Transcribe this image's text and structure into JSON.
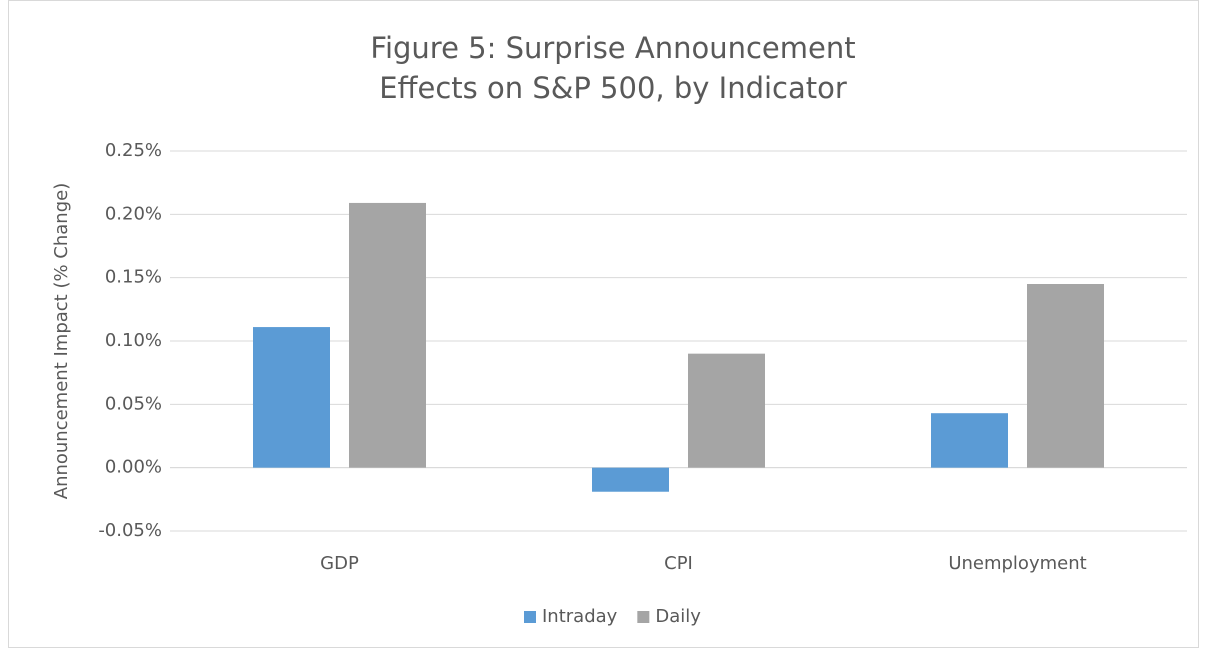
{
  "chart_data": {
    "type": "bar",
    "title": "Figure 5: Surprise Announcement Effects on S&P 500, by Indicator",
    "y_label": "Announcement Impact (% Change)",
    "categories": [
      "GDP",
      "CPI",
      "Unemployment"
    ],
    "series": [
      {
        "name": "Intraday",
        "color": "#5b9bd5",
        "values": [
          0.111,
          -0.019,
          0.043
        ]
      },
      {
        "name": "Daily",
        "color": "#a5a5a5",
        "values": [
          0.209,
          0.09,
          0.145
        ]
      }
    ],
    "ylim": [
      -0.05,
      0.25
    ],
    "yticks": [
      {
        "value": -0.05,
        "label": "-0.05%"
      },
      {
        "value": 0,
        "label": "0.00%"
      },
      {
        "value": 0.05,
        "label": "0.05%"
      },
      {
        "value": 0.1,
        "label": "0.10%"
      },
      {
        "value": 0.15,
        "label": "0.15%"
      },
      {
        "value": 0.2,
        "label": "0.20%"
      },
      {
        "value": 0.25,
        "label": "0.25%"
      }
    ],
    "grid": true,
    "legend": "bottom"
  }
}
